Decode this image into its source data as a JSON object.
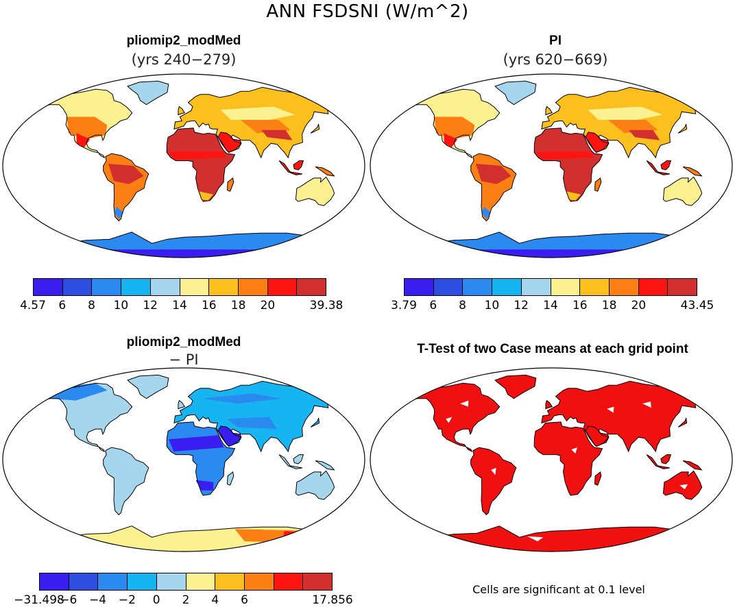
{
  "title": "ANN FSDSNI (W/m^2)",
  "panels": [
    {
      "title": "pliomip2_modMed",
      "subtitle": "(yrs 240−279)",
      "palette": "warm",
      "colorbar": {
        "labels": [
          "4.57",
          "6",
          "8",
          "10",
          "12",
          "14",
          "16",
          "18",
          "20",
          "39.38"
        ],
        "colors": [
          "#3a1ef0",
          "#2d4ee0",
          "#2b8af0",
          "#16b4f0",
          "#a6d5ee",
          "#fbf191",
          "#fbbf1e",
          "#fb7f12",
          "#fb1410",
          "#d22f2f"
        ]
      }
    },
    {
      "title": "PI",
      "subtitle": "(yrs 620−669)",
      "palette": "warm",
      "colorbar": {
        "labels": [
          "3.79",
          "6",
          "8",
          "10",
          "12",
          "14",
          "16",
          "18",
          "20",
          "43.45"
        ],
        "colors": [
          "#3a1ef0",
          "#2d4ee0",
          "#2b8af0",
          "#16b4f0",
          "#a6d5ee",
          "#fbf191",
          "#fbbf1e",
          "#fb7f12",
          "#fb1410",
          "#d22f2f"
        ]
      }
    },
    {
      "title": "pliomip2_modMed",
      "subtitle": "− PI",
      "palette": "diff",
      "colorbar": {
        "labels": [
          "−31.498",
          "−6",
          "−4",
          "−2",
          "0",
          "2",
          "4",
          "6",
          "17.856"
        ],
        "colors": [
          "#3a1ef0",
          "#2d4ee0",
          "#2b8af0",
          "#16b4f0",
          "#a6d5ee",
          "#fbf191",
          "#fbbf1e",
          "#fb7f12",
          "#fb1410",
          "#d22f2f"
        ]
      }
    },
    {
      "title": "T-Test of two Case means at each grid point",
      "note": "Cells are significant at 0.1 level",
      "palette": "sig",
      "sig_color": "#f01010"
    }
  ]
}
